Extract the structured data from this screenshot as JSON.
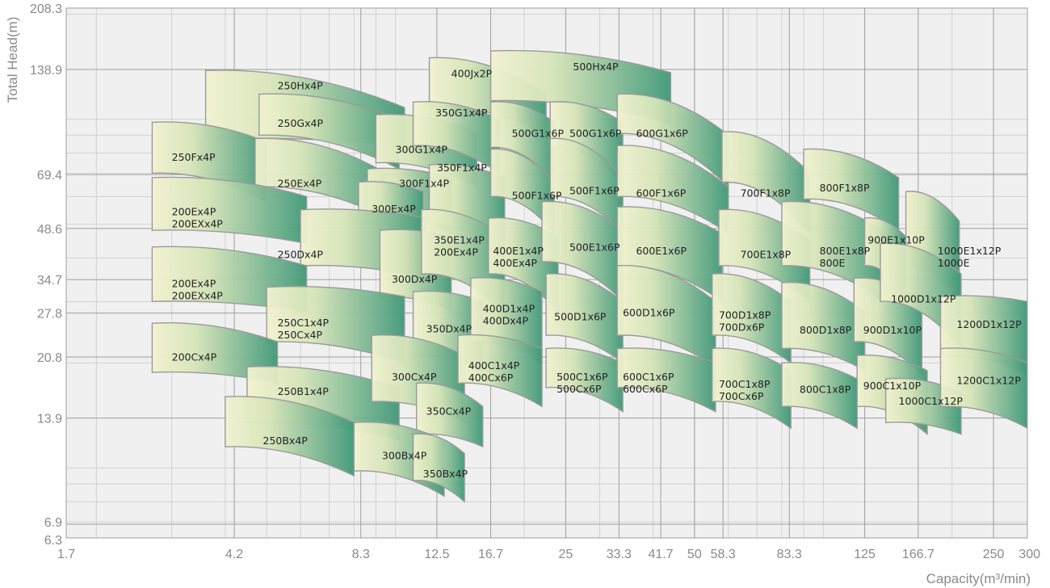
{
  "chart_data": {
    "type": "area",
    "title": "",
    "xlabel": "Capacity(m³/min)",
    "ylabel": "Total Head(m)",
    "x_scale": "log",
    "y_scale": "log",
    "xlim": [
      1.7,
      300
    ],
    "ylim": [
      6.3,
      208.3
    ],
    "x_ticks": [
      1.7,
      4.2,
      8.3,
      12.5,
      16.7,
      25,
      33.3,
      41.7,
      50,
      58.3,
      83.3,
      125,
      166.7,
      250,
      300
    ],
    "x_tick_labels": [
      "1.7",
      "4.2",
      "8.3",
      "12.5",
      "16.7",
      "25",
      "33.3",
      "41.7",
      "50",
      "58.3",
      "83.3",
      "125",
      "166.7",
      "250",
      "300"
    ],
    "y_ticks": [
      6.3,
      6.9,
      13.9,
      20.8,
      27.8,
      34.7,
      48.6,
      69.4,
      138.9,
      208.3
    ],
    "y_tick_labels": [
      "6.3",
      "6.9",
      "13.9",
      "20.8",
      "27.8",
      "34.7",
      "48.6",
      "69.4",
      "138.9",
      "208.3"
    ],
    "grid": true,
    "colors": {
      "region_light": "#f1f2cf",
      "region_dark": "#3f9878",
      "region_stroke": "#9a9a9a",
      "plot_bg": "#f0f0f0",
      "grid_major": "#9e9e9e",
      "grid_minor": "#d2d2d2"
    },
    "regions": [
      {
        "label": [
          "250Hx4P"
        ],
        "x": [
          3.6,
          10.5
        ],
        "y_top": [
          138,
          108
        ],
        "y_bot": [
          88,
          84
        ],
        "lx": 5.3,
        "ly": 122
      },
      {
        "label": [
          "250Gx4P"
        ],
        "x": [
          4.8,
          10.2
        ],
        "y_top": [
          118,
          100
        ],
        "y_bot": [
          90,
          72
        ],
        "lx": 5.3,
        "ly": 95
      },
      {
        "label": [
          "300G1x4P"
        ],
        "x": [
          9.0,
          15.5
        ],
        "y_top": [
          103,
          92
        ],
        "y_bot": [
          75,
          64
        ],
        "lx": 10.0,
        "ly": 80
      },
      {
        "label": [
          "400Jx2P"
        ],
        "x": [
          12.0,
          22.5
        ],
        "y_top": [
          150,
          118
        ],
        "y_bot": [
          109,
          90
        ],
        "lx": 13.5,
        "ly": 132
      },
      {
        "label": [
          "500Hx4P"
        ],
        "x": [
          16.7,
          44.0
        ],
        "y_top": [
          157,
          136
        ],
        "y_bot": [
          113,
          97
        ],
        "lx": 26.0,
        "ly": 138
      },
      {
        "label": [
          "350G1x4P"
        ],
        "x": [
          11.0,
          17.5
        ],
        "y_top": [
          112,
          100
        ],
        "y_bot": [
          84,
          70
        ],
        "lx": 12.4,
        "ly": 102
      },
      {
        "label": [
          "500G1x6P"
        ],
        "x": [
          16.7,
          23.5
        ],
        "y_top": [
          112,
          98
        ],
        "y_bot": [
          83,
          66
        ],
        "lx": 18.7,
        "ly": 89
      },
      {
        "label": [
          "500G1x6P"
        ],
        "x": [
          23.0,
          34.0
        ],
        "y_top": [
          112,
          98
        ],
        "y_bot": [
          83,
          66
        ],
        "lx": 25.5,
        "ly": 89
      },
      {
        "label": [
          "600G1x6P"
        ],
        "x": [
          33.0,
          60.0
        ],
        "y_top": [
          118,
          90
        ],
        "y_bot": [
          91,
          64
        ],
        "lx": 36.5,
        "ly": 89
      },
      {
        "label": [
          "250Fx4P"
        ],
        "x": [
          2.7,
          5.0
        ],
        "y_top": [
          98,
          86
        ],
        "y_bot": [
          70,
          58
        ],
        "lx": 3.0,
        "ly": 76
      },
      {
        "label": [
          "250Ex4P"
        ],
        "x": [
          4.7,
          9.5
        ],
        "y_top": [
          88,
          70
        ],
        "y_bot": [
          64,
          52
        ],
        "lx": 5.3,
        "ly": 64
      },
      {
        "label": [
          "300F1x4P"
        ],
        "x": [
          8.6,
          13.5
        ],
        "y_top": [
          72,
          68
        ],
        "y_bot": [
          54,
          47
        ],
        "lx": 10.2,
        "ly": 64
      },
      {
        "label": [
          "350F1x4P"
        ],
        "x": [
          12.0,
          18.0
        ],
        "y_top": [
          74,
          68
        ],
        "y_bot": [
          50,
          40
        ],
        "lx": 12.5,
        "ly": 71
      },
      {
        "label": [
          "300Ex4P"
        ],
        "x": [
          8.2,
          11.6
        ],
        "y_top": [
          66,
          62
        ],
        "y_bot": [
          50,
          46
        ],
        "lx": 8.8,
        "ly": 54
      },
      {
        "label": [
          "500F1x6P"
        ],
        "x": [
          16.7,
          23.5
        ],
        "y_top": [
          82,
          66
        ],
        "y_bot": [
          60,
          47
        ],
        "lx": 18.7,
        "ly": 59
      },
      {
        "label": [
          "500F1x6P"
        ],
        "x": [
          23.0,
          34.0
        ],
        "y_top": [
          88,
          68
        ],
        "y_bot": [
          60,
          47
        ],
        "lx": 25.5,
        "ly": 61
      },
      {
        "label": [
          "600F1x6P"
        ],
        "x": [
          33.0,
          60.0
        ],
        "y_top": [
          84,
          64
        ],
        "y_bot": [
          60,
          47
        ],
        "lx": 36.5,
        "ly": 60
      },
      {
        "label": [
          "700F1x8P"
        ],
        "x": [
          58.0,
          93.0
        ],
        "y_top": [
          92,
          70
        ],
        "y_bot": [
          66,
          47
        ],
        "lx": 64.0,
        "ly": 60
      },
      {
        "label": [
          "800F1x8P"
        ],
        "x": [
          90.0,
          150.0
        ],
        "y_top": [
          82,
          68
        ],
        "y_bot": [
          59,
          48
        ],
        "lx": 98.0,
        "ly": 62
      },
      {
        "label": [
          "200Ex4P",
          "200EXx4P"
        ],
        "x": [
          2.7,
          6.2
        ],
        "y_top": [
          68,
          60
        ],
        "y_bot": [
          48,
          44
        ],
        "lx": 3.0,
        "ly": 53
      },
      {
        "label": [
          "250Dx4P"
        ],
        "x": [
          6.0,
          11.8
        ],
        "y_top": [
          55,
          52
        ],
        "y_bot": [
          38,
          35
        ],
        "lx": 5.3,
        "ly": 40
      },
      {
        "label": [
          "300Dx4P"
        ],
        "x": [
          9.2,
          13.5
        ],
        "y_top": [
          48,
          46
        ],
        "y_bot": [
          31,
          28
        ],
        "lx": 9.8,
        "ly": 34
      },
      {
        "label": [
          "350E1x4P",
          "200Ex4P"
        ],
        "x": [
          11.5,
          18.0
        ],
        "y_top": [
          55,
          46
        ],
        "y_bot": [
          36,
          28
        ],
        "lx": 12.3,
        "ly": 44
      },
      {
        "label": [
          "400E1x4P",
          "400Ex4P"
        ],
        "x": [
          16.5,
          24.0
        ],
        "y_top": [
          52,
          46
        ],
        "y_bot": [
          36,
          28
        ],
        "lx": 16.9,
        "ly": 41
      },
      {
        "label": [
          "500E1x6P"
        ],
        "x": [
          22.0,
          34.0
        ],
        "y_top": [
          58,
          48
        ],
        "y_bot": [
          39,
          30
        ],
        "lx": 25.5,
        "ly": 42
      },
      {
        "label": [
          "600E1x6P"
        ],
        "x": [
          33.0,
          58.0
        ],
        "y_top": [
          56,
          47
        ],
        "y_bot": [
          38,
          30
        ],
        "lx": 36.5,
        "ly": 41
      },
      {
        "label": [
          "700E1x8P"
        ],
        "x": [
          57.0,
          93.0
        ],
        "y_top": [
          55,
          45
        ],
        "y_bot": [
          38,
          30
        ],
        "lx": 64.0,
        "ly": 40
      },
      {
        "label": [
          "800E1x8P",
          "800E"
        ],
        "x": [
          80.0,
          138.0
        ],
        "y_top": [
          58,
          48
        ],
        "y_bot": [
          38,
          30
        ],
        "lx": 98.0,
        "ly": 41
      },
      {
        "label": [
          "900E1x10P"
        ],
        "x": [
          125.0,
          156.0
        ],
        "y_top": [
          52,
          46
        ],
        "y_bot": [
          38,
          30
        ],
        "lx": 127.0,
        "ly": 44
      },
      {
        "label": [
          "1000E1x12P",
          "1000E"
        ],
        "x": [
          156.0,
          208.0
        ],
        "y_top": [
          62,
          51
        ],
        "y_bot": [
          38,
          30
        ],
        "lx": 185.0,
        "ly": 41
      },
      {
        "label": [
          "200Ex4P",
          "200EXx4P"
        ],
        "x": [
          2.7,
          6.2
        ],
        "y_top": [
          43,
          38
        ],
        "y_bot": [
          30,
          28
        ],
        "lx": 3.0,
        "ly": 33
      },
      {
        "label": [
          "250C1x4P",
          "250Cx4P"
        ],
        "x": [
          5.0,
          10.5
        ],
        "y_top": [
          33,
          31
        ],
        "y_bot": [
          23,
          20
        ],
        "lx": 5.3,
        "ly": 25.5
      },
      {
        "label": [
          "350Dx4P"
        ],
        "x": [
          11.0,
          16.0
        ],
        "y_top": [
          32,
          30
        ],
        "y_bot": [
          21,
          19
        ],
        "lx": 11.8,
        "ly": 24.5
      },
      {
        "label": [
          "400D1x4P",
          "400Dx4P"
        ],
        "x": [
          15.0,
          22.0
        ],
        "y_top": [
          35,
          32
        ],
        "y_bot": [
          23,
          20
        ],
        "lx": 16.0,
        "ly": 28
      },
      {
        "label": [
          "500D1x6P"
        ],
        "x": [
          22.5,
          34.0
        ],
        "y_top": [
          36,
          30
        ],
        "y_bot": [
          24,
          20
        ],
        "lx": 23.5,
        "ly": 26.5
      },
      {
        "label": [
          "600D1x6P"
        ],
        "x": [
          33.0,
          56.0
        ],
        "y_top": [
          38,
          30
        ],
        "y_bot": [
          24,
          19.5
        ],
        "lx": 34.0,
        "ly": 27.2
      },
      {
        "label": [
          "700D1x8P",
          "700Dx6P"
        ],
        "x": [
          55.0,
          84.0
        ],
        "y_top": [
          36,
          30
        ],
        "y_bot": [
          24,
          20
        ],
        "lx": 57.0,
        "ly": 26.8
      },
      {
        "label": [
          "800D1x8P"
        ],
        "x": [
          80.0,
          125.0
        ],
        "y_top": [
          34,
          28
        ],
        "y_bot": [
          22,
          19
        ],
        "lx": 88.0,
        "ly": 24.3
      },
      {
        "label": [
          "900D1x10P"
        ],
        "x": [
          118.0,
          170.0
        ],
        "y_top": [
          35,
          30
        ],
        "y_bot": [
          23,
          18.5
        ],
        "lx": 124.0,
        "ly": 24.3
      },
      {
        "label": [
          "1000D1x12P"
        ],
        "x": [
          136.0,
          210.0
        ],
        "y_top": [
          44,
          36
        ],
        "y_bot": [
          30,
          22
        ],
        "lx": 144.0,
        "ly": 29.8
      },
      {
        "label": [
          "1200D1x12P"
        ],
        "x": [
          188.0,
          300.0
        ],
        "y_top": [
          31,
          30
        ],
        "y_bot": [
          21,
          18.5
        ],
        "lx": 205.0,
        "ly": 25.2
      },
      {
        "label": [
          "200Cx4P"
        ],
        "x": [
          2.7,
          5.3
        ],
        "y_top": [
          26,
          23
        ],
        "y_bot": [
          18.8,
          17.5
        ],
        "lx": 3.0,
        "ly": 20.3
      },
      {
        "label": [
          "250B1x4P"
        ],
        "x": [
          4.5,
          10.2
        ],
        "y_top": [
          19.5,
          17
        ],
        "y_bot": [
          13.5,
          12
        ],
        "lx": 5.3,
        "ly": 16.2
      },
      {
        "label": [
          "300Cx4P"
        ],
        "x": [
          8.8,
          14.5
        ],
        "y_top": [
          24,
          21
        ],
        "y_bot": [
          15.5,
          13.5
        ],
        "lx": 9.8,
        "ly": 17.8
      },
      {
        "label": [
          "350Cx4P"
        ],
        "x": [
          11.2,
          16.0
        ],
        "y_top": [
          17.5,
          15
        ],
        "y_bot": [
          12.5,
          11.5
        ],
        "lx": 11.8,
        "ly": 14.2
      },
      {
        "label": [
          "400C1x4P",
          "400Cx6P"
        ],
        "x": [
          14.0,
          22.0
        ],
        "y_top": [
          24,
          22
        ],
        "y_bot": [
          17.5,
          15
        ],
        "lx": 14.8,
        "ly": 19.2
      },
      {
        "label": [
          "500C1x6P",
          "500Cx6P"
        ],
        "x": [
          22.5,
          34.0
        ],
        "y_top": [
          22,
          20
        ],
        "y_bot": [
          17,
          14.5
        ],
        "lx": 23.8,
        "ly": 17.8
      },
      {
        "label": [
          "600C1x6P",
          "600Cx6P"
        ],
        "x": [
          33.0,
          56.0
        ],
        "y_top": [
          22,
          20
        ],
        "y_bot": [
          17,
          14.5
        ],
        "lx": 34.0,
        "ly": 17.8
      },
      {
        "label": [
          "700C1x8P",
          "700Cx6P"
        ],
        "x": [
          55.0,
          84.0
        ],
        "y_top": [
          22,
          19
        ],
        "y_bot": [
          15.5,
          13
        ],
        "lx": 57.0,
        "ly": 17
      },
      {
        "label": [
          "800C1x8P"
        ],
        "x": [
          80.0,
          120.0
        ],
        "y_top": [
          20,
          18
        ],
        "y_bot": [
          15,
          13
        ],
        "lx": 88.0,
        "ly": 16.4
      },
      {
        "label": [
          "900C1x10P"
        ],
        "x": [
          120.0,
          175.0
        ],
        "y_top": [
          21,
          19
        ],
        "y_bot": [
          15,
          12.5
        ],
        "lx": 124.0,
        "ly": 16.8
      },
      {
        "label": [
          "1000C1x12P"
        ],
        "x": [
          140.0,
          210.0
        ],
        "y_top": [
          18,
          16.5
        ],
        "y_bot": [
          13.5,
          12.5
        ],
        "lx": 150.0,
        "ly": 15.2
      },
      {
        "label": [
          "1200C1x12P"
        ],
        "x": [
          188.0,
          300.0
        ],
        "y_top": [
          22,
          20
        ],
        "y_bot": [
          15,
          13
        ],
        "lx": 205.0,
        "ly": 17.4
      },
      {
        "label": [
          "250Bx4P"
        ],
        "x": [
          4.0,
          8.0
        ],
        "y_top": [
          16,
          13.5
        ],
        "y_bot": [
          11.5,
          9.5
        ],
        "lx": 4.9,
        "ly": 11.7
      },
      {
        "label": [
          "300Bx4P"
        ],
        "x": [
          8.0,
          13.0
        ],
        "y_top": [
          13.5,
          12
        ],
        "y_bot": [
          9.8,
          8.3
        ],
        "lx": 9.3,
        "ly": 10.6
      },
      {
        "label": [
          "350Bx4P"
        ],
        "x": [
          11.0,
          14.5
        ],
        "y_top": [
          12.5,
          11
        ],
        "y_bot": [
          9.2,
          8
        ],
        "lx": 11.6,
        "ly": 9.4
      }
    ]
  }
}
